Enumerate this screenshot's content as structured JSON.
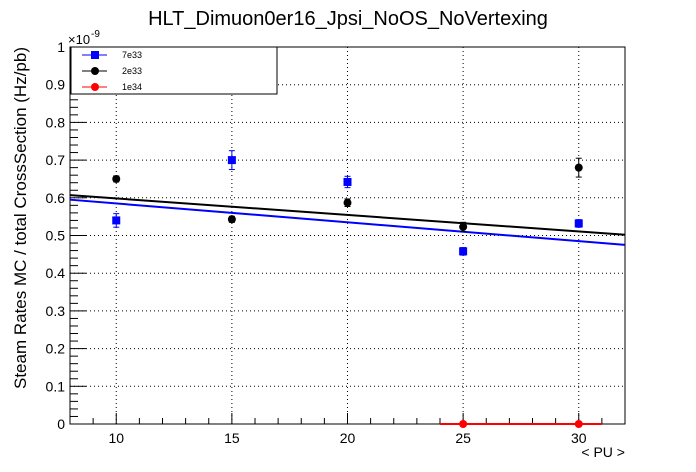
{
  "chart_data": {
    "type": "scatter",
    "title": "HLT_Dimuon0er16_Jpsi_NoOS_NoVertexing",
    "xlabel": "< PU >",
    "ylabel": "Steam Rates MC / total CrossSection (Hz/pb)",
    "y_exponent_label": "×10",
    "y_exponent_power": "-9",
    "xlim": [
      8,
      32
    ],
    "ylim": [
      0,
      1
    ],
    "x_ticks": [
      "10",
      "15",
      "20",
      "25",
      "30"
    ],
    "y_ticks": [
      "0",
      "0.1",
      "0.2",
      "0.3",
      "0.4",
      "0.5",
      "0.6",
      "0.7",
      "0.8",
      "0.9",
      "1"
    ],
    "grid": true,
    "legend_position": "top-left",
    "series": [
      {
        "name": "7e33",
        "color": "#0000ff",
        "marker": "square",
        "x": [
          10,
          15,
          20,
          25,
          30
        ],
        "y": [
          0.54,
          0.7,
          0.642,
          0.458,
          0.532
        ],
        "yerr": [
          0.018,
          0.025,
          0.015,
          0.01,
          0.01
        ],
        "fit": {
          "x": [
            8,
            32
          ],
          "y": [
            0.595,
            0.475
          ]
        }
      },
      {
        "name": "2e33",
        "color": "#000000",
        "marker": "circle",
        "x": [
          10,
          15,
          20,
          25,
          30
        ],
        "y": [
          0.65,
          0.543,
          0.587,
          0.523,
          0.68
        ],
        "yerr": [
          0.008,
          0.008,
          0.01,
          0.012,
          0.025
        ],
        "fit": {
          "x": [
            8,
            32
          ],
          "y": [
            0.607,
            0.502
          ]
        }
      },
      {
        "name": "1e34",
        "color": "#ff0000",
        "marker": "circle",
        "x": [
          25,
          30
        ],
        "y": [
          0,
          0
        ],
        "xerr": [
          1.0,
          1.0
        ],
        "fit": {
          "x": [
            25,
            30
          ],
          "y": [
            0,
            0
          ]
        }
      }
    ]
  }
}
